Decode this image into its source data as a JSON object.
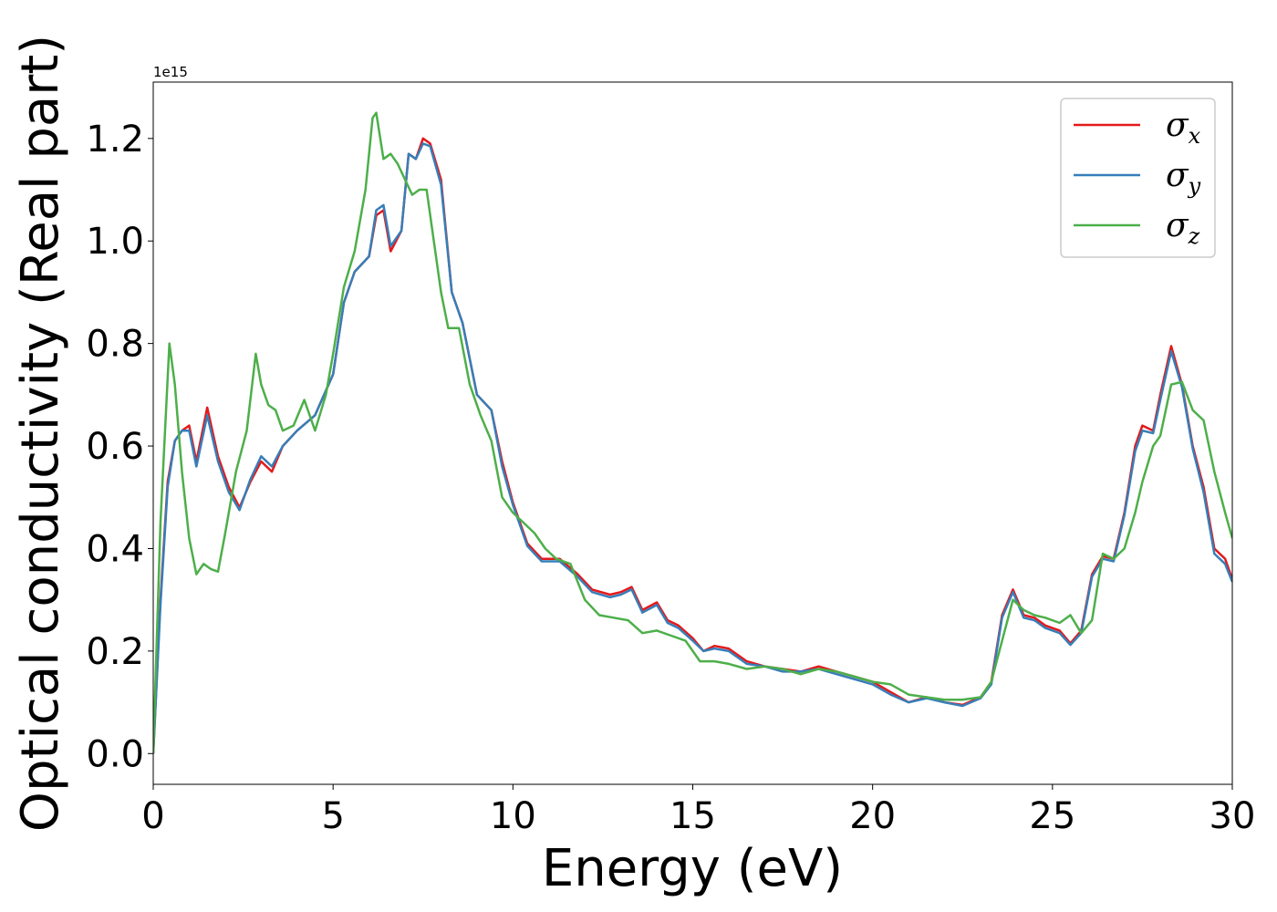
{
  "chart_data": {
    "type": "line",
    "title": "",
    "xlabel": "Energy (eV)",
    "ylabel": "Optical conductivity (Real part)",
    "y_offset_text": "1e15",
    "y_scale_factor": 1000000000000000.0,
    "xlim": [
      0,
      30
    ],
    "ylim": [
      -0.06,
      1.31
    ],
    "xticks": [
      0,
      5,
      10,
      15,
      20,
      25,
      30
    ],
    "xtick_labels": [
      "0",
      "5",
      "10",
      "15",
      "20",
      "25",
      "30"
    ],
    "yticks": [
      0.0,
      0.2,
      0.4,
      0.6,
      0.8,
      1.0,
      1.2
    ],
    "ytick_labels": [
      "0.0",
      "0.2",
      "0.4",
      "0.6",
      "0.8",
      "1.0",
      "1.2"
    ],
    "grid": false,
    "legend_position": "top-right",
    "series": [
      {
        "name": "σx",
        "legend_symbol": "σ",
        "legend_subscript": "x",
        "color": "#e41a1c",
        "x": [
          0,
          0.2,
          0.4,
          0.6,
          0.8,
          1.0,
          1.2,
          1.5,
          1.8,
          2.1,
          2.4,
          2.7,
          3.0,
          3.3,
          3.6,
          4.0,
          4.5,
          5.0,
          5.3,
          5.6,
          6.0,
          6.2,
          6.4,
          6.6,
          6.9,
          7.1,
          7.3,
          7.5,
          7.7,
          8.0,
          8.3,
          8.6,
          9.0,
          9.4,
          9.7,
          10.0,
          10.4,
          10.8,
          11.3,
          11.8,
          12.2,
          12.7,
          13.0,
          13.3,
          13.6,
          14.0,
          14.3,
          14.6,
          15.0,
          15.3,
          15.6,
          16.0,
          16.5,
          17.0,
          17.5,
          18.0,
          18.5,
          19.0,
          19.5,
          20.0,
          20.5,
          21.0,
          21.5,
          22.0,
          22.5,
          23.0,
          23.3,
          23.6,
          23.9,
          24.2,
          24.5,
          24.8,
          25.2,
          25.5,
          25.8,
          26.1,
          26.4,
          26.7,
          27.0,
          27.3,
          27.5,
          27.8,
          28.0,
          28.3,
          28.6,
          28.9,
          29.2,
          29.5,
          29.8,
          30.0
        ],
        "y": [
          0.0,
          0.3,
          0.53,
          0.61,
          0.63,
          0.64,
          0.57,
          0.675,
          0.58,
          0.52,
          0.48,
          0.53,
          0.57,
          0.55,
          0.6,
          0.63,
          0.66,
          0.74,
          0.88,
          0.94,
          0.97,
          1.05,
          1.06,
          0.98,
          1.02,
          1.17,
          1.16,
          1.2,
          1.19,
          1.12,
          0.9,
          0.84,
          0.7,
          0.67,
          0.57,
          0.49,
          0.41,
          0.38,
          0.38,
          0.35,
          0.32,
          0.31,
          0.315,
          0.325,
          0.28,
          0.295,
          0.26,
          0.25,
          0.225,
          0.2,
          0.21,
          0.205,
          0.18,
          0.17,
          0.165,
          0.16,
          0.17,
          0.16,
          0.15,
          0.14,
          0.12,
          0.1,
          0.11,
          0.1,
          0.095,
          0.11,
          0.14,
          0.27,
          0.32,
          0.27,
          0.265,
          0.25,
          0.24,
          0.215,
          0.24,
          0.35,
          0.385,
          0.38,
          0.47,
          0.6,
          0.64,
          0.63,
          0.7,
          0.795,
          0.72,
          0.6,
          0.52,
          0.4,
          0.38,
          0.34
        ]
      },
      {
        "name": "σy",
        "legend_symbol": "σ",
        "legend_subscript": "y",
        "color": "#377eb8",
        "x": [
          0,
          0.2,
          0.4,
          0.6,
          0.8,
          1.0,
          1.2,
          1.5,
          1.8,
          2.1,
          2.4,
          2.7,
          3.0,
          3.3,
          3.6,
          4.0,
          4.5,
          5.0,
          5.3,
          5.6,
          6.0,
          6.2,
          6.4,
          6.6,
          6.9,
          7.1,
          7.3,
          7.5,
          7.7,
          8.0,
          8.3,
          8.6,
          9.0,
          9.4,
          9.7,
          10.0,
          10.4,
          10.8,
          11.3,
          11.8,
          12.2,
          12.7,
          13.0,
          13.3,
          13.6,
          14.0,
          14.3,
          14.6,
          15.0,
          15.3,
          15.6,
          16.0,
          16.5,
          17.0,
          17.5,
          18.0,
          18.5,
          19.0,
          19.5,
          20.0,
          20.5,
          21.0,
          21.5,
          22.0,
          22.5,
          23.0,
          23.3,
          23.6,
          23.9,
          24.2,
          24.5,
          24.8,
          25.2,
          25.5,
          25.8,
          26.1,
          26.4,
          26.7,
          27.0,
          27.3,
          27.5,
          27.8,
          28.0,
          28.3,
          28.6,
          28.9,
          29.2,
          29.5,
          29.8,
          30.0
        ],
        "y": [
          0.0,
          0.29,
          0.52,
          0.61,
          0.63,
          0.63,
          0.56,
          0.66,
          0.57,
          0.51,
          0.475,
          0.535,
          0.58,
          0.56,
          0.6,
          0.63,
          0.66,
          0.74,
          0.88,
          0.94,
          0.97,
          1.06,
          1.07,
          0.99,
          1.02,
          1.17,
          1.16,
          1.19,
          1.185,
          1.11,
          0.9,
          0.84,
          0.7,
          0.67,
          0.56,
          0.485,
          0.405,
          0.375,
          0.375,
          0.345,
          0.315,
          0.305,
          0.31,
          0.32,
          0.275,
          0.29,
          0.255,
          0.245,
          0.22,
          0.2,
          0.205,
          0.2,
          0.175,
          0.17,
          0.16,
          0.16,
          0.165,
          0.155,
          0.145,
          0.135,
          0.115,
          0.1,
          0.108,
          0.1,
          0.093,
          0.108,
          0.135,
          0.265,
          0.315,
          0.265,
          0.26,
          0.245,
          0.235,
          0.212,
          0.235,
          0.345,
          0.38,
          0.375,
          0.465,
          0.59,
          0.63,
          0.625,
          0.69,
          0.785,
          0.715,
          0.595,
          0.51,
          0.39,
          0.37,
          0.335
        ]
      },
      {
        "name": "σz",
        "legend_symbol": "σ",
        "legend_subscript": "z",
        "color": "#4daf4a",
        "x": [
          0,
          0.2,
          0.45,
          0.6,
          0.8,
          1.0,
          1.2,
          1.4,
          1.6,
          1.8,
          2.0,
          2.3,
          2.6,
          2.85,
          3.0,
          3.2,
          3.4,
          3.6,
          3.9,
          4.2,
          4.5,
          4.8,
          5.0,
          5.3,
          5.6,
          5.9,
          6.1,
          6.2,
          6.4,
          6.6,
          6.8,
          7.0,
          7.2,
          7.4,
          7.6,
          7.8,
          8.0,
          8.2,
          8.5,
          8.8,
          9.1,
          9.4,
          9.7,
          10.0,
          10.3,
          10.6,
          10.9,
          11.2,
          11.6,
          12.0,
          12.4,
          12.8,
          13.2,
          13.6,
          14.0,
          14.4,
          14.8,
          15.2,
          15.6,
          16.0,
          16.5,
          17.0,
          17.5,
          18.0,
          18.5,
          19.0,
          19.5,
          20.0,
          20.5,
          21.0,
          21.5,
          22.0,
          22.5,
          23.0,
          23.3,
          23.6,
          23.9,
          24.2,
          24.5,
          24.8,
          25.2,
          25.5,
          25.8,
          26.1,
          26.4,
          26.7,
          27.0,
          27.3,
          27.5,
          27.8,
          28.0,
          28.3,
          28.6,
          28.9,
          29.2,
          29.5,
          29.8,
          30.0
        ],
        "y": [
          0.0,
          0.45,
          0.8,
          0.72,
          0.55,
          0.42,
          0.35,
          0.37,
          0.36,
          0.355,
          0.43,
          0.55,
          0.63,
          0.78,
          0.72,
          0.68,
          0.67,
          0.63,
          0.64,
          0.69,
          0.63,
          0.7,
          0.78,
          0.91,
          0.98,
          1.1,
          1.24,
          1.25,
          1.16,
          1.17,
          1.15,
          1.12,
          1.09,
          1.1,
          1.1,
          1.0,
          0.9,
          0.83,
          0.83,
          0.72,
          0.66,
          0.61,
          0.5,
          0.47,
          0.45,
          0.43,
          0.4,
          0.38,
          0.37,
          0.3,
          0.27,
          0.265,
          0.26,
          0.235,
          0.24,
          0.23,
          0.22,
          0.18,
          0.18,
          0.175,
          0.165,
          0.17,
          0.165,
          0.155,
          0.165,
          0.16,
          0.15,
          0.14,
          0.135,
          0.115,
          0.11,
          0.105,
          0.105,
          0.11,
          0.14,
          0.22,
          0.3,
          0.28,
          0.27,
          0.265,
          0.255,
          0.27,
          0.235,
          0.26,
          0.39,
          0.38,
          0.4,
          0.47,
          0.53,
          0.6,
          0.62,
          0.72,
          0.725,
          0.67,
          0.65,
          0.55,
          0.47,
          0.42
        ]
      }
    ]
  }
}
